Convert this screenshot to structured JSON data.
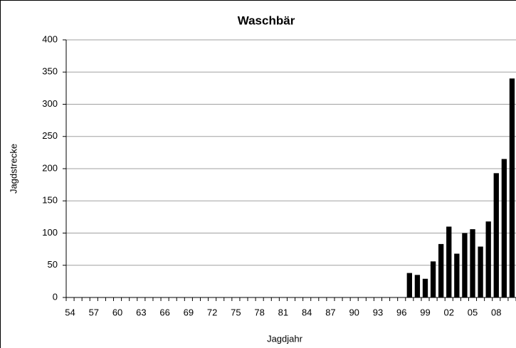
{
  "chart_data": {
    "type": "bar",
    "title": "Waschbär",
    "x_label": "Jagdjahr",
    "y_label": "Jagdstrecke",
    "categories": [
      "54",
      null,
      null,
      "57",
      null,
      null,
      "60",
      null,
      null,
      "63",
      null,
      null,
      "66",
      null,
      null,
      "69",
      null,
      null,
      "72",
      null,
      null,
      "75",
      null,
      null,
      "78",
      null,
      null,
      "81",
      null,
      null,
      "84",
      null,
      null,
      "87",
      null,
      null,
      "90",
      null,
      null,
      "93",
      null,
      null,
      "96",
      null,
      null,
      "99",
      null,
      null,
      "02",
      null,
      null,
      "05",
      null,
      null,
      "08",
      null,
      null
    ],
    "values": [
      0,
      0,
      0,
      0,
      0,
      0,
      0,
      0,
      0,
      0,
      0,
      0,
      0,
      0,
      0,
      0,
      0,
      0,
      0,
      0,
      0,
      0,
      0,
      0,
      0,
      0,
      0,
      0,
      0,
      0,
      0,
      0,
      0,
      0,
      0,
      0,
      0,
      0,
      0,
      0,
      0,
      0,
      0,
      38,
      35,
      29,
      56,
      83,
      110,
      68,
      100,
      106,
      79,
      118,
      193,
      215,
      340
    ],
    "color": "#000000",
    "ylim": [
      0,
      400
    ],
    "yticks": [
      0,
      50,
      100,
      150,
      200,
      250,
      300,
      350,
      400
    ],
    "grid": true
  }
}
